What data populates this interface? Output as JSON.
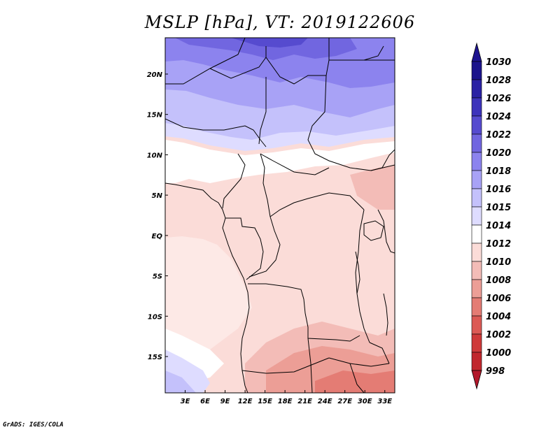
{
  "title": "MSLP [hPa], VT: 2019122606",
  "footer": "GrADS: IGES/COLA",
  "map": {
    "lon_range": [
      0,
      34.5
    ],
    "lat_range": [
      -19.5,
      24.5
    ],
    "x_ticks": [
      {
        "lon": 3,
        "label": "3E"
      },
      {
        "lon": 6,
        "label": "6E"
      },
      {
        "lon": 9,
        "label": "9E"
      },
      {
        "lon": 12,
        "label": "12E"
      },
      {
        "lon": 15,
        "label": "15E"
      },
      {
        "lon": 18,
        "label": "18E"
      },
      {
        "lon": 21,
        "label": "21E"
      },
      {
        "lon": 24,
        "label": "24E"
      },
      {
        "lon": 27,
        "label": "27E"
      },
      {
        "lon": 30,
        "label": "30E"
      },
      {
        "lon": 33,
        "label": "33E"
      }
    ],
    "y_ticks": [
      {
        "lat": 20,
        "label": "20N"
      },
      {
        "lat": 15,
        "label": "15N"
      },
      {
        "lat": 10,
        "label": "10N"
      },
      {
        "lat": 5,
        "label": "5N"
      },
      {
        "lat": 0,
        "label": "EQ"
      },
      {
        "lat": -5,
        "label": "5S"
      },
      {
        "lat": -10,
        "label": "10S"
      },
      {
        "lat": -15,
        "label": "15S"
      }
    ]
  },
  "colorbar": {
    "levels": [
      {
        "label": "998",
        "color": "#b2182b"
      },
      {
        "label": "1000",
        "color": "#c1272d"
      },
      {
        "label": "1002",
        "color": "#cf3a3a"
      },
      {
        "label": "1004",
        "color": "#dc5a55"
      },
      {
        "label": "1006",
        "color": "#e47c74"
      },
      {
        "label": "1008",
        "color": "#ec9e96"
      },
      {
        "label": "1010",
        "color": "#f3bcb7"
      },
      {
        "label": "1012",
        "color": "#fbdcd8"
      },
      {
        "label": "1014",
        "color": "#ffffff"
      },
      {
        "label": "1015",
        "color": "#dedcff"
      },
      {
        "label": "1016",
        "color": "#c4c1fb"
      },
      {
        "label": "1018",
        "color": "#a8a2f6"
      },
      {
        "label": "1020",
        "color": "#8c83ee"
      },
      {
        "label": "1022",
        "color": "#7166e0"
      },
      {
        "label": "1024",
        "color": "#564bcf"
      },
      {
        "label": "1026",
        "color": "#3d33bb"
      },
      {
        "label": "1028",
        "color": "#2a21a4"
      },
      {
        "label": "1030",
        "color": "#1c148c"
      }
    ],
    "top_arrow_color": "#1e1490",
    "bottom_arrow_color": "#b2182b"
  }
}
